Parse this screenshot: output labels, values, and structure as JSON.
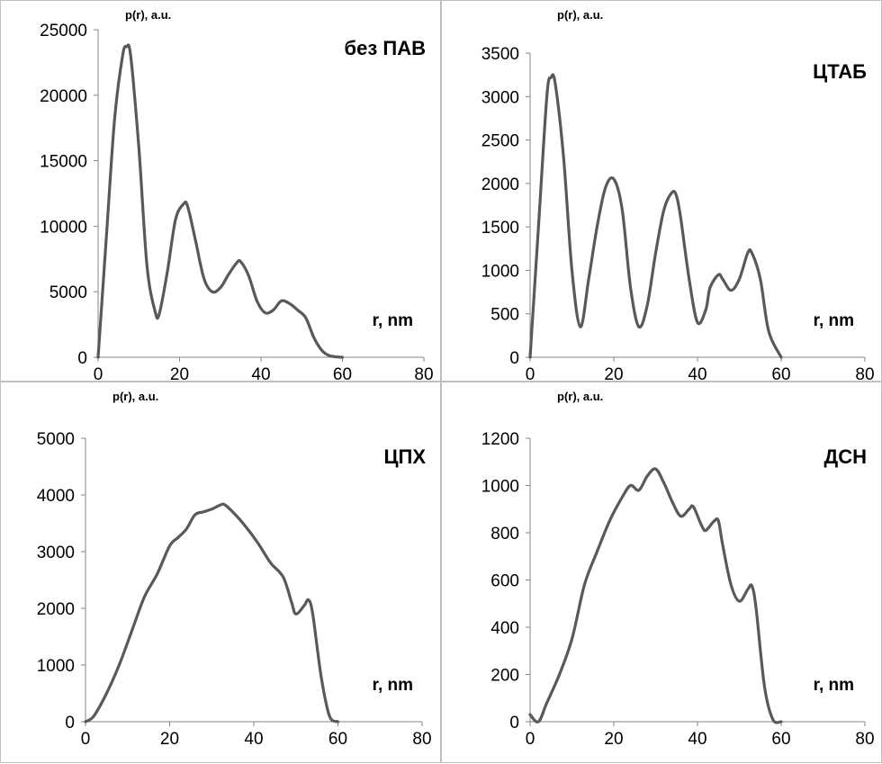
{
  "chart_data": [
    {
      "type": "line",
      "title": "без ПАВ",
      "ylabel": "p(r), a.u.",
      "xlabel": "r, nm",
      "xlim": [
        0,
        80
      ],
      "ylim": [
        0,
        25000
      ],
      "xticks": [
        0,
        20,
        40,
        60,
        80
      ],
      "yticks": [
        0,
        5000,
        10000,
        15000,
        20000,
        25000
      ],
      "color": "#595959",
      "x": [
        0,
        2,
        4,
        6,
        7,
        8,
        10,
        12,
        14,
        15,
        17,
        19,
        21,
        22,
        24,
        26,
        28,
        30,
        32,
        34,
        35,
        37,
        39,
        41,
        43,
        45,
        47,
        49,
        51,
        53,
        55,
        57,
        60
      ],
      "y": [
        0,
        9000,
        18000,
        23000,
        23700,
        23000,
        16000,
        7000,
        3500,
        3300,
        6500,
        10500,
        11700,
        11500,
        8800,
        6000,
        5000,
        5300,
        6300,
        7200,
        7300,
        6200,
        4300,
        3400,
        3600,
        4300,
        4100,
        3600,
        3000,
        1500,
        500,
        100,
        0
      ]
    },
    {
      "type": "line",
      "title": "ЦТАБ",
      "ylabel": "p(r), a.u.",
      "xlabel": "r, nm",
      "xlim": [
        0,
        80
      ],
      "ylim": [
        0,
        3500
      ],
      "xticks": [
        0,
        20,
        40,
        60,
        80
      ],
      "yticks": [
        0,
        500,
        1000,
        1500,
        2000,
        2500,
        3000,
        3500
      ],
      "color": "#595959",
      "x": [
        0,
        2,
        4,
        5,
        6,
        8,
        10,
        12,
        14,
        16,
        18,
        20,
        22,
        24,
        26,
        28,
        30,
        32,
        34,
        35,
        36,
        38,
        40,
        42,
        43,
        45,
        46,
        48,
        50,
        52,
        53,
        55,
        57,
        60
      ],
      "y": [
        0,
        1500,
        3000,
        3220,
        3150,
        2300,
        1000,
        350,
        900,
        1500,
        1950,
        2050,
        1700,
        800,
        350,
        600,
        1200,
        1700,
        1900,
        1850,
        1600,
        900,
        400,
        550,
        800,
        950,
        900,
        770,
        900,
        1200,
        1200,
        900,
        300,
        0
      ]
    },
    {
      "type": "line",
      "title": "ЦПХ",
      "ylabel": "p(r), a.u.",
      "xlabel": "r, nm",
      "xlim": [
        0,
        80
      ],
      "ylim": [
        0,
        5000
      ],
      "xticks": [
        0,
        20,
        40,
        60,
        80
      ],
      "yticks": [
        0,
        1000,
        2000,
        3000,
        4000,
        5000
      ],
      "color": "#595959",
      "x": [
        0,
        2,
        5,
        8,
        11,
        14,
        17,
        20,
        22,
        24,
        26,
        28,
        30,
        32,
        33,
        35,
        38,
        41,
        44,
        47,
        49,
        50,
        52,
        53,
        54,
        56,
        58,
        60
      ],
      "y": [
        0,
        100,
        500,
        1000,
        1600,
        2200,
        2600,
        3100,
        3250,
        3400,
        3650,
        3700,
        3750,
        3820,
        3830,
        3700,
        3450,
        3150,
        2800,
        2550,
        2100,
        1900,
        2050,
        2150,
        1900,
        800,
        100,
        0
      ]
    },
    {
      "type": "line",
      "title": "ДСН",
      "ylabel": "p(r), a.u.",
      "xlabel": "r, nm",
      "xlim": [
        0,
        80
      ],
      "ylim": [
        0,
        1200
      ],
      "xticks": [
        0,
        20,
        40,
        60,
        80
      ],
      "yticks": [
        0,
        200,
        400,
        600,
        800,
        1000,
        1200
      ],
      "color": "#595959",
      "x": [
        0,
        2,
        4,
        7,
        10,
        13,
        16,
        19,
        22,
        24,
        26,
        28,
        30,
        32,
        34,
        36,
        38,
        39,
        41,
        42,
        44,
        45,
        46,
        48,
        50,
        52,
        53,
        54,
        56,
        58,
        60
      ],
      "y": [
        30,
        0,
        80,
        200,
        350,
        580,
        720,
        850,
        950,
        1000,
        980,
        1040,
        1070,
        1010,
        930,
        870,
        900,
        910,
        830,
        810,
        850,
        850,
        750,
        580,
        510,
        560,
        575,
        480,
        150,
        10,
        0
      ]
    }
  ]
}
